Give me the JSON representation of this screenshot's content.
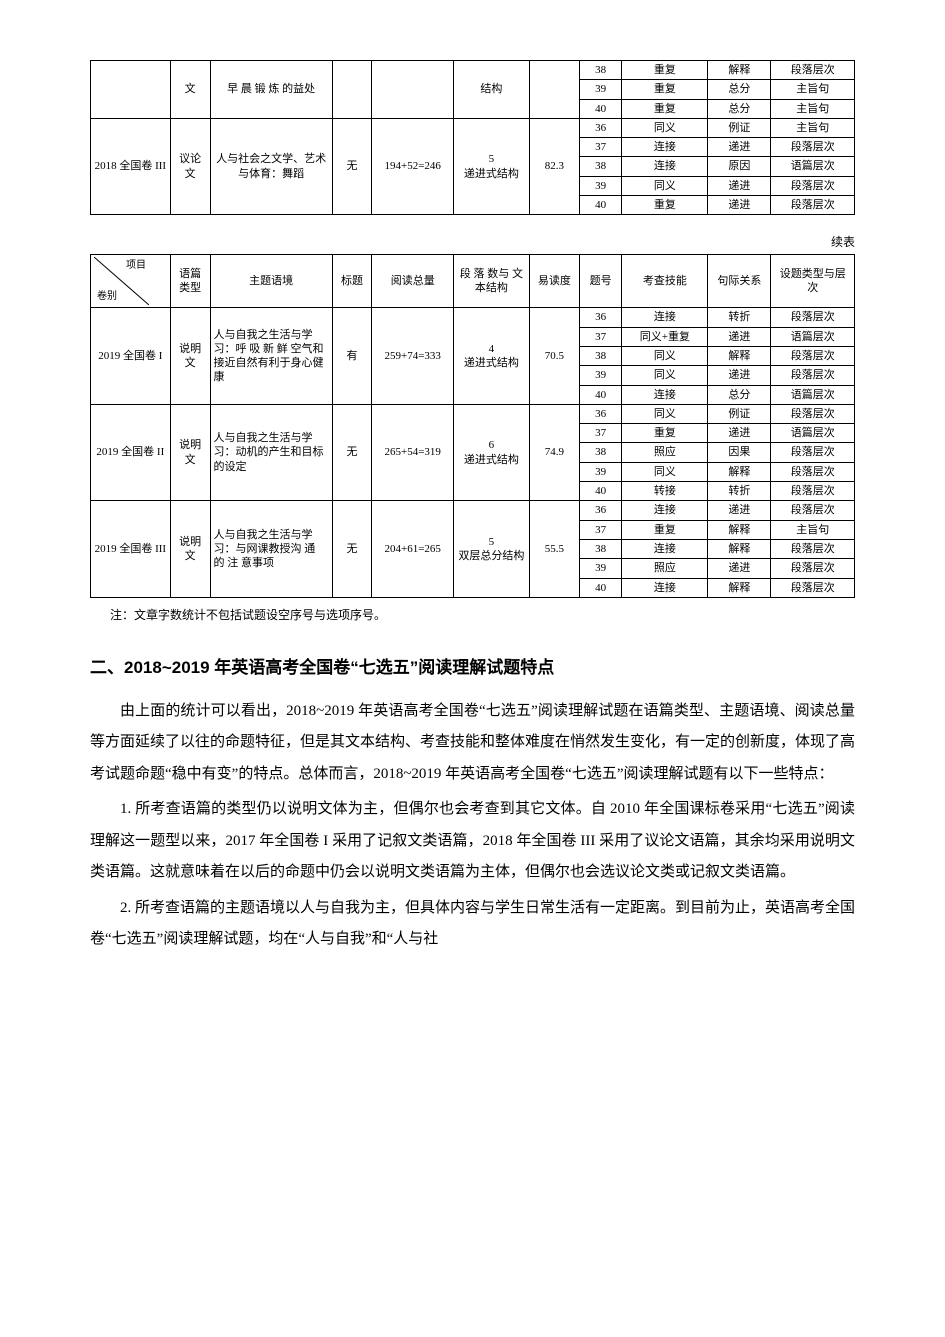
{
  "table1": {
    "partial_top": {
      "type_col": "文",
      "theme": "早 晨 锻 炼 的益处",
      "struct": "结构",
      "rows": [
        {
          "q": "38",
          "skill": "重复",
          "rel": "解释",
          "level": "段落层次"
        },
        {
          "q": "39",
          "skill": "重复",
          "rel": "总分",
          "level": "主旨句"
        },
        {
          "q": "40",
          "skill": "重复",
          "rel": "总分",
          "level": "主旨句"
        }
      ]
    },
    "group": {
      "paper": "2018 全国卷 III",
      "type": "议论文",
      "theme": "人与社会之文学、艺术与体育：舞蹈",
      "title": "无",
      "words": "194+52=246",
      "struct": "5\n递进式结构",
      "ease": "82.3",
      "rows": [
        {
          "q": "36",
          "skill": "同义",
          "rel": "例证",
          "level": "主旨句"
        },
        {
          "q": "37",
          "skill": "连接",
          "rel": "递进",
          "level": "段落层次"
        },
        {
          "q": "38",
          "skill": "连接",
          "rel": "原因",
          "level": "语篇层次"
        },
        {
          "q": "39",
          "skill": "同义",
          "rel": "递进",
          "level": "段落层次"
        },
        {
          "q": "40",
          "skill": "重复",
          "rel": "递进",
          "level": "段落层次"
        }
      ]
    }
  },
  "continued_label": "续表",
  "table2": {
    "header": {
      "diag_top": "项目",
      "diag_bot": "卷别",
      "c2": "语篇类型",
      "c3": "主题语境",
      "c4": "标题",
      "c5": "阅读总量",
      "c6": "段 落 数与 文 本结构",
      "c7": "易读度",
      "c8": "题号",
      "c9": "考查技能",
      "c10": "句际关系",
      "c11": "设题类型与层次"
    },
    "groups": [
      {
        "paper": "2019 全国卷 I",
        "type": "说明文",
        "theme": "人与自我之生活与学习：呼 吸 新 鲜 空气和接近自然有利于身心健康",
        "title": "有",
        "words": "259+74=333",
        "struct": "4\n递进式结构",
        "ease": "70.5",
        "rows": [
          {
            "q": "36",
            "skill": "连接",
            "rel": "转折",
            "level": "段落层次"
          },
          {
            "q": "37",
            "skill": "同义+重复",
            "rel": "递进",
            "level": "语篇层次"
          },
          {
            "q": "38",
            "skill": "同义",
            "rel": "解释",
            "level": "段落层次"
          },
          {
            "q": "39",
            "skill": "同义",
            "rel": "递进",
            "level": "段落层次"
          },
          {
            "q": "40",
            "skill": "连接",
            "rel": "总分",
            "level": "语篇层次"
          }
        ]
      },
      {
        "paper": "2019 全国卷 II",
        "type": "说明文",
        "theme": "人与自我之生活与学习：动机的产生和目标的设定",
        "title": "无",
        "words": "265+54=319",
        "struct": "6\n递进式结构",
        "ease": "74.9",
        "rows": [
          {
            "q": "36",
            "skill": "同义",
            "rel": "例证",
            "level": "段落层次"
          },
          {
            "q": "37",
            "skill": "重复",
            "rel": "递进",
            "level": "语篇层次"
          },
          {
            "q": "38",
            "skill": "照应",
            "rel": "因果",
            "level": "段落层次"
          },
          {
            "q": "39",
            "skill": "同义",
            "rel": "解释",
            "level": "段落层次"
          },
          {
            "q": "40",
            "skill": "转接",
            "rel": "转折",
            "level": "段落层次"
          }
        ]
      },
      {
        "paper": "2019 全国卷 III",
        "type": "说明文",
        "theme": "人与自我之生活与学习：与网课教授沟 通 的 注 意事项",
        "title": "无",
        "words": "204+61=265",
        "struct": "5\n双层总分结构",
        "ease": "55.5",
        "rows": [
          {
            "q": "36",
            "skill": "连接",
            "rel": "递进",
            "level": "段落层次"
          },
          {
            "q": "37",
            "skill": "重复",
            "rel": "解释",
            "level": "主旨句"
          },
          {
            "q": "38",
            "skill": "连接",
            "rel": "解释",
            "level": "段落层次"
          },
          {
            "q": "39",
            "skill": "照应",
            "rel": "递进",
            "level": "段落层次"
          },
          {
            "q": "40",
            "skill": "连接",
            "rel": "解释",
            "level": "段落层次"
          }
        ]
      }
    ]
  },
  "note": "注：文章字数统计不包括试题设空序号与选项序号。",
  "section_heading": "二、2018~2019 年英语高考全国卷“七选五”阅读理解试题特点",
  "paragraphs": [
    "由上面的统计可以看出，2018~2019 年英语高考全国卷“七选五”阅读理解试题在语篇类型、主题语境、阅读总量等方面延续了以往的命题特征，但是其文本结构、考查技能和整体难度在悄然发生变化，有一定的创新度，体现了高考试题命题“稳中有变”的特点。总体而言，2018~2019 年英语高考全国卷“七选五”阅读理解试题有以下一些特点：",
    "1. 所考查语篇的类型仍以说明文体为主，但偶尔也会考查到其它文体。自 2010 年全国课标卷采用“七选五”阅读理解这一题型以来，2017 年全国卷 I 采用了记叙文类语篇，2018 年全国卷 III 采用了议论文语篇，其余均采用说明文类语篇。这就意味着在以后的命题中仍会以说明文类语篇为主体，但偶尔也会选议论文类或记叙文类语篇。",
    "2. 所考查语篇的主题语境以人与自我为主，但具体内容与学生日常生活有一定距离。到目前为止，英语高考全国卷“七选五”阅读理解试题，均在“人与自我”和“人与社"
  ]
}
